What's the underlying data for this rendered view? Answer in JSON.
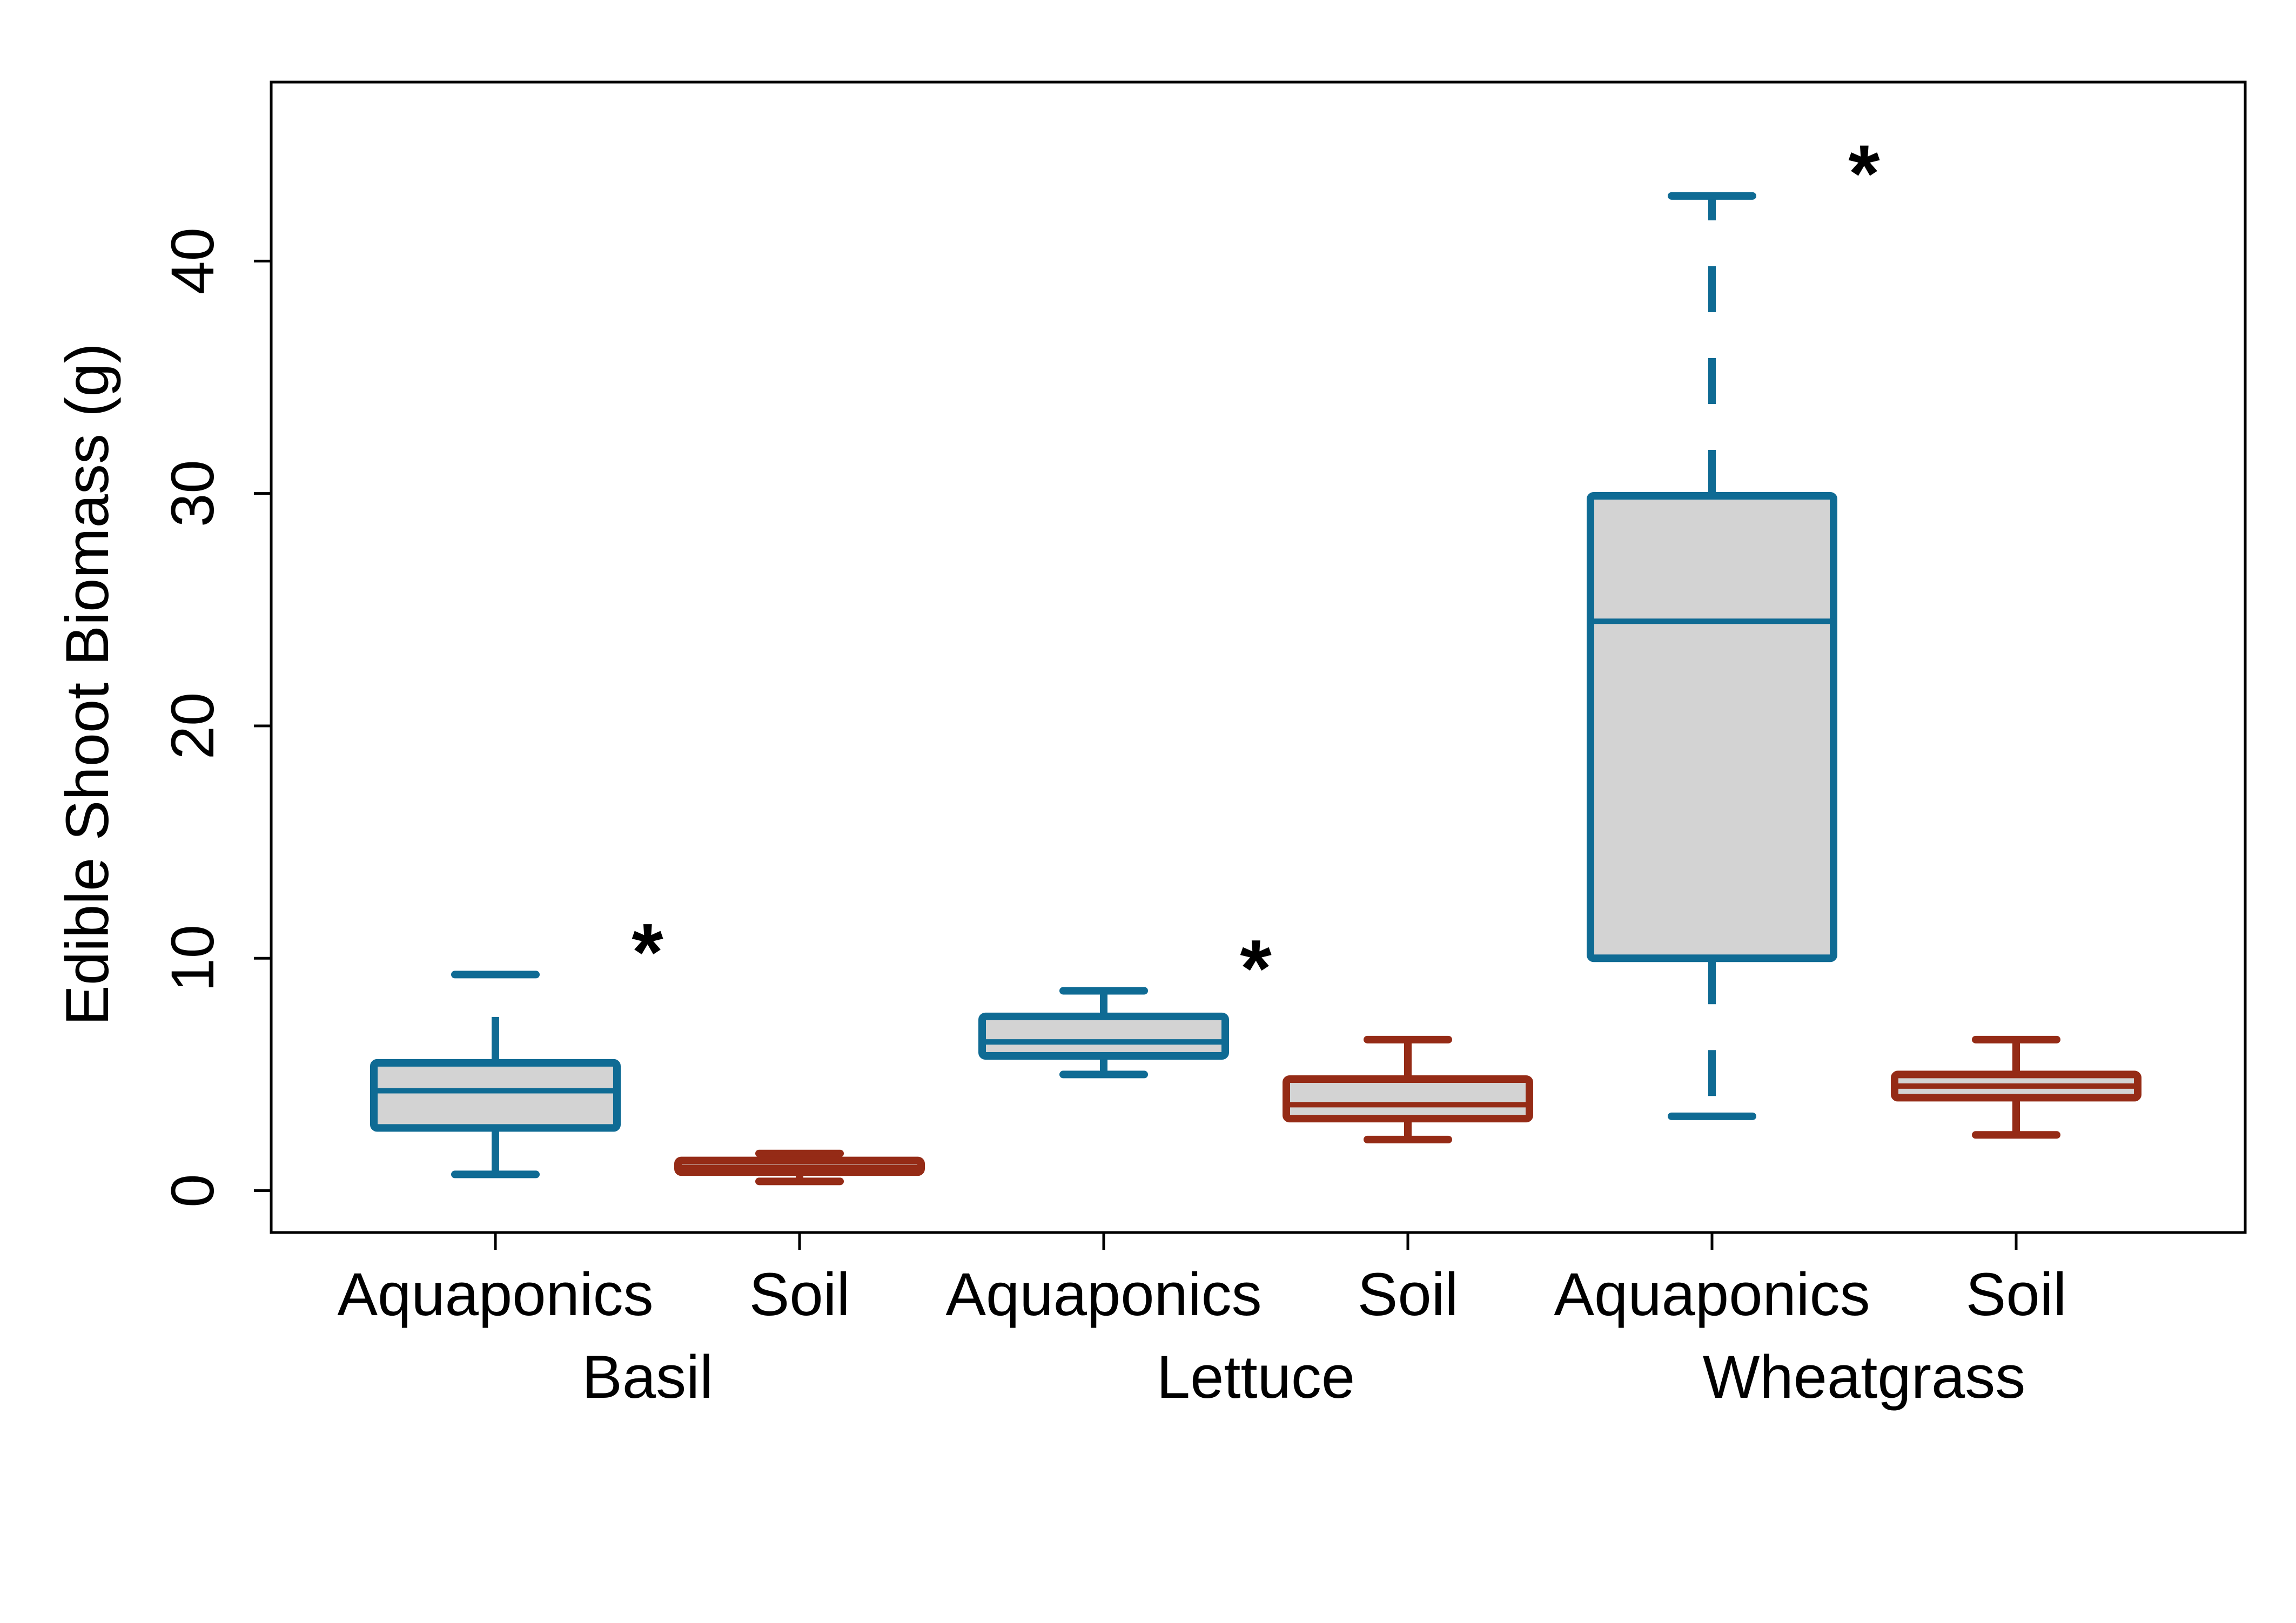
{
  "chart_data": {
    "type": "boxplot",
    "ylabel": "Edible Shoot Biomass  (g)",
    "ylim": [
      -1.8,
      47.7
    ],
    "yticks": [
      0,
      10,
      20,
      30,
      40
    ],
    "colors": {
      "Aquaponics": "#0f6b94",
      "Soil": "#952b16",
      "box_fill": "#d3d3d3"
    },
    "groups": [
      {
        "name": "Basil",
        "significance": "*",
        "boxes": [
          {
            "treatment": "Aquaponics",
            "whisker_low": 0.7,
            "q1": 2.7,
            "median": 4.3,
            "q3": 5.5,
            "whisker_high": 9.3
          },
          {
            "treatment": "Soil",
            "whisker_low": 0.4,
            "q1": 0.8,
            "median": 1.0,
            "q3": 1.3,
            "whisker_high": 1.6
          }
        ]
      },
      {
        "name": "Lettuce",
        "significance": "*",
        "boxes": [
          {
            "treatment": "Aquaponics",
            "whisker_low": 5.0,
            "q1": 5.8,
            "median": 6.4,
            "q3": 7.5,
            "whisker_high": 8.6
          },
          {
            "treatment": "Soil",
            "whisker_low": 2.2,
            "q1": 3.1,
            "median": 3.7,
            "q3": 4.8,
            "whisker_high": 6.5
          }
        ]
      },
      {
        "name": "Wheatgrass",
        "significance": "*",
        "boxes": [
          {
            "treatment": "Aquaponics",
            "whisker_low": 3.2,
            "q1": 10.0,
            "median": 24.5,
            "q3": 29.9,
            "whisker_high": 42.8
          },
          {
            "treatment": "Soil",
            "whisker_low": 2.4,
            "q1": 4.0,
            "median": 4.5,
            "q3": 5.0,
            "whisker_high": 6.5
          }
        ]
      }
    ]
  }
}
